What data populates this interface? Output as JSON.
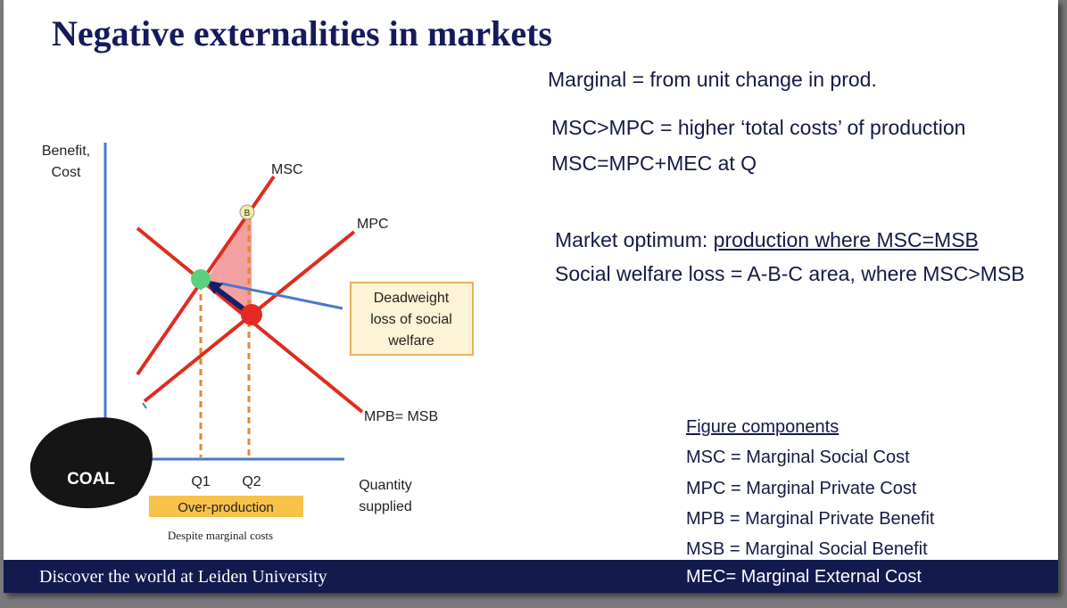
{
  "title": "Negative externalities in markets",
  "notes": {
    "marginal": "Marginal = from unit change in prod.",
    "msc_mpc": "MSC>MPC = higher ‘total costs’ of production",
    "msc_eq": "MSC=MPC+MEC at Q",
    "optimum_label": "Market optimum:",
    "optimum_text": "production where MSC=MSB",
    "welfare_loss": "Social welfare loss = A-B-C area, where MSC>MSB"
  },
  "diagram": {
    "y_axis_label": [
      "Benefit,",
      "Cost"
    ],
    "x_axis_label": [
      "Quantity",
      "supplied"
    ],
    "msc": "MSC",
    "mpc": "MPC",
    "mpb": "MPB= MSB",
    "point_b": "B",
    "deadweight": [
      "Deadweight",
      "loss of social",
      "welfare"
    ],
    "q1": "Q1",
    "q2": "Q2",
    "over_production": "Over-production",
    "caption": "Despite marginal costs",
    "coal": "COAL"
  },
  "components": {
    "heading": "Figure components",
    "items": [
      "MSC = Marginal Social Cost",
      "MPC = Marginal Private Cost",
      "MPB = Marginal Private Benefit",
      "MSB = Marginal Social Benefit",
      "MEC= Marginal External Cost"
    ]
  },
  "footer": "Discover the world at Leiden University"
}
